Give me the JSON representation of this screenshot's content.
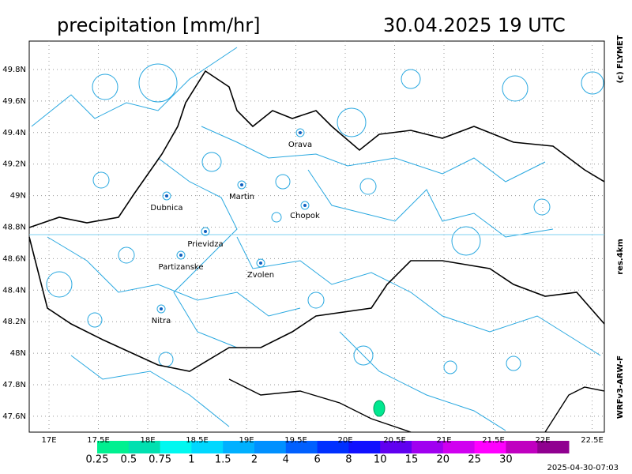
{
  "header": {
    "title": "precipitation [mm/hr]",
    "time": "30.04.2025   19 UTC"
  },
  "side": {
    "copyright": "(c) FLYMET",
    "resolution": "res.4km",
    "model": "WRFv3-ARW-F"
  },
  "timestamp": "2025-04-30-07:03",
  "axes": {
    "lat_ticks": [
      "49.8N",
      "49.6N",
      "49.4N",
      "49.2N",
      "49N",
      "48.8N",
      "48.6N",
      "48.4N",
      "48.2N",
      "48N",
      "47.8N",
      "47.6N"
    ],
    "lon_ticks": [
      "17E",
      "17.5E",
      "18E",
      "18.5E",
      "19E",
      "19.5E",
      "20E",
      "20.5E",
      "21E",
      "21.5E",
      "22E",
      "22.5E"
    ]
  },
  "cities": [
    "Orava",
    "Martin",
    "Dubnica",
    "Chopok",
    "Prievidza",
    "Partizanske",
    "Zvolen",
    "Nitra"
  ],
  "legend": {
    "labels": [
      "0.25",
      "0.5",
      "0.75",
      "1",
      "1.5",
      "2",
      "4",
      "6",
      "8",
      "10",
      "15",
      "20",
      "25",
      "30"
    ],
    "colors": [
      "#00f090",
      "#00e0b0",
      "#00f8f0",
      "#00d8ff",
      "#00b0ff",
      "#0090ff",
      "#0060ff",
      "#0030ff",
      "#1010ff",
      "#6000f0",
      "#a000f0",
      "#d000f0",
      "#ff00ff",
      "#c000c0",
      "#900090"
    ]
  }
}
